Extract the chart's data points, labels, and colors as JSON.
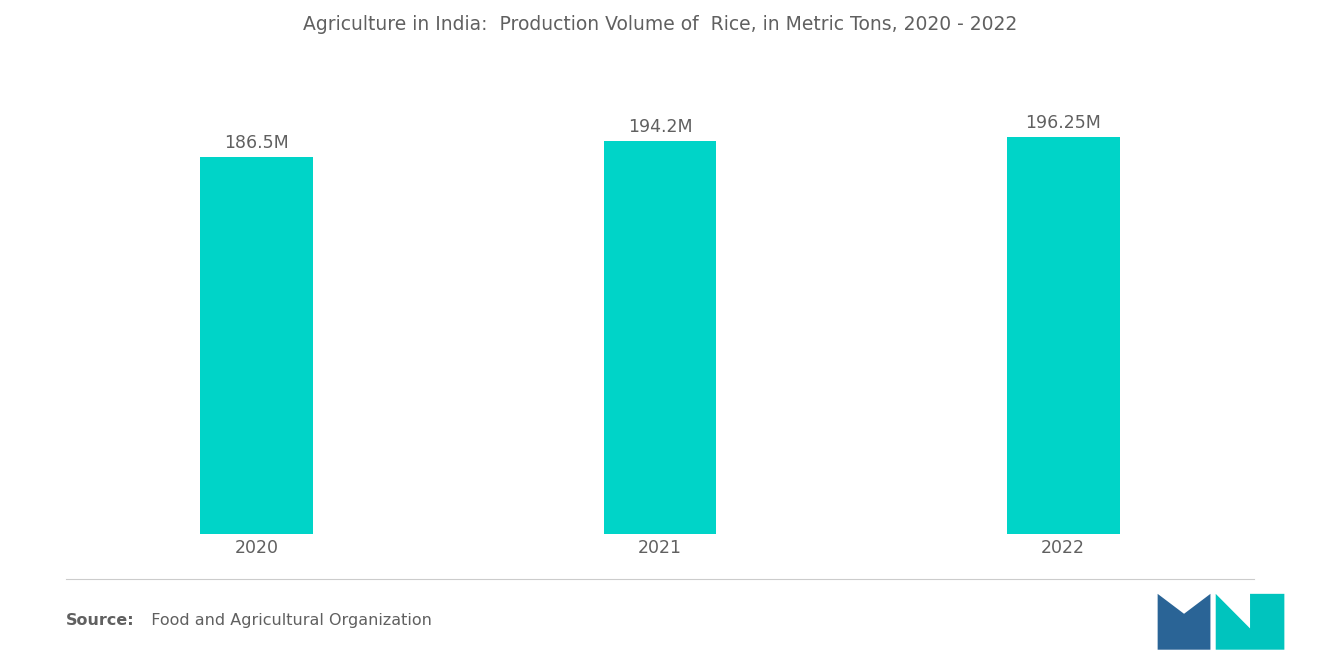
{
  "title": "Agriculture in India:  Production Volume of  Rice, in Metric Tons, 2020 - 2022",
  "categories": [
    "2020",
    "2021",
    "2022"
  ],
  "values": [
    186.5,
    194.2,
    196.25
  ],
  "labels": [
    "186.5M",
    "194.2M",
    "196.25M"
  ],
  "bar_color": "#00D4C8",
  "background_color": "#ffffff",
  "title_color": "#606060",
  "label_color": "#606060",
  "source_bold": "Source:",
  "source_text": "  Food and Agricultural Organization",
  "ylim": [
    0,
    230
  ],
  "bar_width": 0.28,
  "xlim": [
    -0.6,
    2.6
  ],
  "title_fontsize": 13.5,
  "label_fontsize": 12.5,
  "tick_fontsize": 12.5,
  "source_fontsize": 11.5,
  "logo_blue": "#2A6496",
  "logo_teal": "#00C4BE"
}
